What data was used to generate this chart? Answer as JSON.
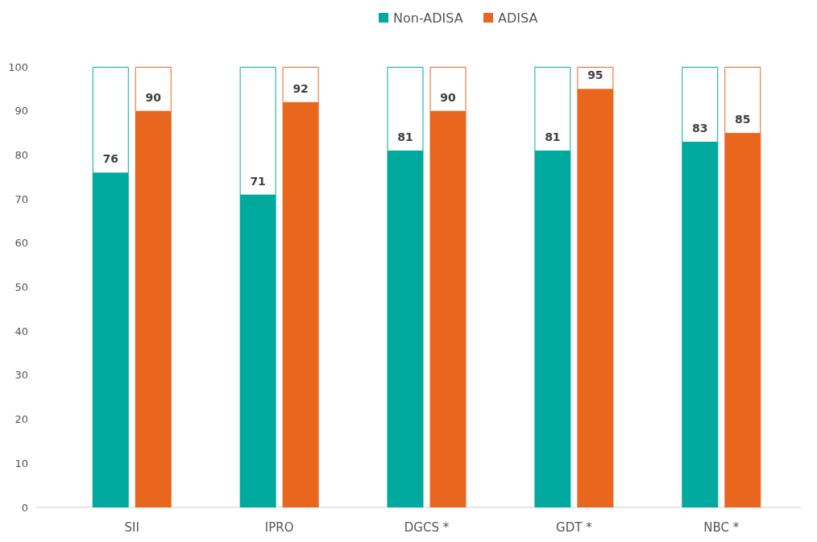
{
  "chart_data": {
    "type": "bar",
    "categories": [
      "SII",
      "IPRO",
      "DGCS *",
      "GDT *",
      "NBC *"
    ],
    "series": [
      {
        "name": "Non-ADISA",
        "color": "#00a99d",
        "values": [
          76,
          71,
          81,
          81,
          83
        ]
      },
      {
        "name": "ADISA",
        "color": "#e8661e",
        "values": [
          90,
          92,
          90,
          95,
          85
        ]
      }
    ],
    "ylim": [
      0,
      100
    ],
    "yticks": [
      0,
      10,
      20,
      30,
      40,
      50,
      60,
      70,
      80,
      90,
      100
    ],
    "data_labels": true,
    "legend": "top",
    "grid": false
  }
}
